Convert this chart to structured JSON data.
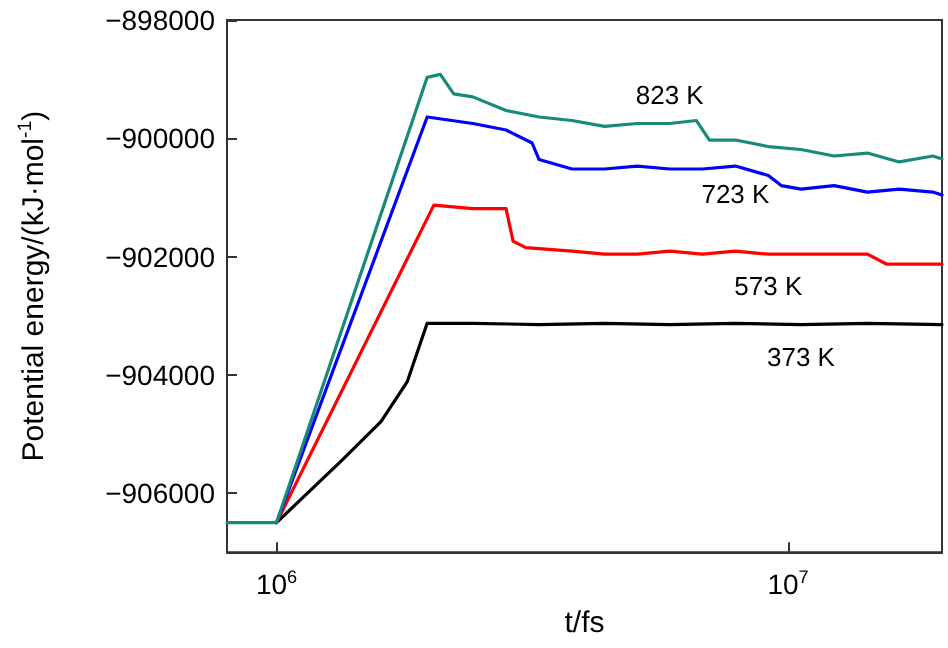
{
  "chart_data": {
    "type": "line",
    "xlabel": "t/fs",
    "ylabel": "Potential energy/(kJ·mol$^{-1}$)",
    "log": "x",
    "xlim": [
      800000,
      20000000
    ],
    "xticks": [
      {
        "value": 1000000,
        "label": "10$^{6}$"
      },
      {
        "value": 10000000,
        "label": "10$^{7}$"
      }
    ],
    "ylim": [
      -907000,
      -898000
    ],
    "yticks": [
      -898000,
      -900000,
      -902000,
      -904000,
      -906000
    ],
    "grid": false,
    "legend": false,
    "marker": "none",
    "line_style": "solid",
    "series": [
      {
        "name": "823 K",
        "color": "#178a7c",
        "x": [
          800000,
          1000000,
          1970000,
          2090000,
          2220000,
          2420000,
          2810000,
          3260000,
          3780000,
          4380000,
          5070000,
          5870000,
          6620000,
          7020000,
          7890000,
          9150000,
          10600000,
          12300000,
          14300000,
          16500000,
          19200000,
          20000000
        ],
        "values": [
          -906500,
          -906500,
          -898970,
          -898920,
          -899250,
          -899300,
          -899530,
          -899640,
          -899700,
          -899800,
          -899750,
          -899750,
          -899700,
          -900030,
          -900030,
          -900140,
          -900190,
          -900300,
          -900250,
          -900400,
          -900300,
          -900350
        ]
      },
      {
        "name": "723 K",
        "color": "#0000ff",
        "x": [
          1000000,
          1970000,
          2420000,
          2810000,
          3160000,
          3260000,
          3780000,
          4380000,
          5070000,
          5870000,
          6800000,
          7890000,
          9150000,
          9700000,
          10600000,
          12300000,
          14300000,
          16500000,
          19200000,
          20000000
        ],
        "values": [
          -906500,
          -899640,
          -899750,
          -899860,
          -900080,
          -900360,
          -900520,
          -900520,
          -900470,
          -900520,
          -900520,
          -900470,
          -900630,
          -900800,
          -900860,
          -900800,
          -900910,
          -900860,
          -900910,
          -900960
        ]
      },
      {
        "name": "573 K",
        "color": "#ff0000",
        "x": [
          1000000,
          2030000,
          2420000,
          2810000,
          2900000,
          3070000,
          3780000,
          4380000,
          5070000,
          5870000,
          6800000,
          7890000,
          9150000,
          12300000,
          14300000,
          15600000,
          19200000,
          20000000
        ],
        "values": [
          -906500,
          -901130,
          -901190,
          -901190,
          -901740,
          -901850,
          -901910,
          -901960,
          -901960,
          -901910,
          -901960,
          -901910,
          -901960,
          -901960,
          -901960,
          -902130,
          -902130,
          -902130
        ]
      },
      {
        "name": "373 K",
        "color": "#000000",
        "x": [
          1000000,
          1340000,
          1600000,
          1800000,
          1970000,
          2420000,
          3260000,
          4380000,
          5870000,
          7890000,
          10600000,
          14300000,
          20000000
        ],
        "values": [
          -906500,
          -905450,
          -904790,
          -904120,
          -903130,
          -903130,
          -903150,
          -903130,
          -903150,
          -903130,
          -903150,
          -903130,
          -903150
        ]
      }
    ]
  }
}
